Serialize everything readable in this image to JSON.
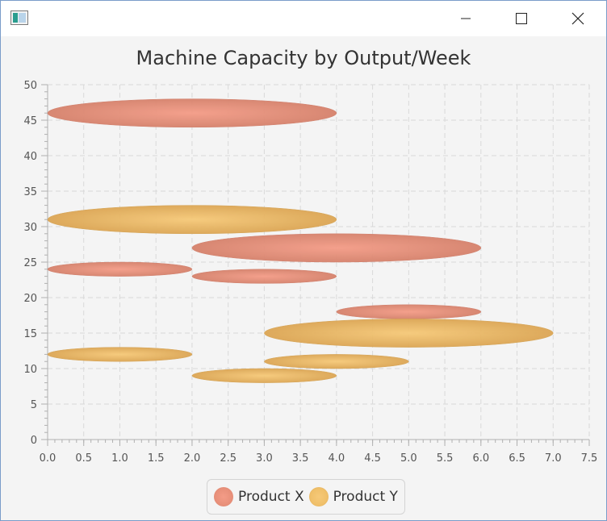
{
  "window": {
    "title": ""
  },
  "colors": {
    "product_x": "#e8907a",
    "product_y": "#f0c06a"
  },
  "chart_data": {
    "type": "bubble",
    "title": "Machine Capacity by Output/Week",
    "xlabel": "",
    "ylabel": "",
    "xlim": [
      0,
      7.5
    ],
    "ylim": [
      0,
      50
    ],
    "x_ticks": [
      "0.0",
      "0.5",
      "1.0",
      "1.5",
      "2.0",
      "2.5",
      "3.0",
      "3.5",
      "4.0",
      "4.5",
      "5.0",
      "5.5",
      "6.0",
      "6.5",
      "7.0",
      "7.5"
    ],
    "y_ticks": [
      "0",
      "5",
      "10",
      "15",
      "20",
      "25",
      "30",
      "35",
      "40",
      "45",
      "50"
    ],
    "grid": true,
    "legend_position": "bottom",
    "series": [
      {
        "name": "Product X",
        "points": [
          {
            "x": 2,
            "y": 46,
            "radius": 2
          },
          {
            "x": 1,
            "y": 24,
            "radius": 1
          },
          {
            "x": 4,
            "y": 27,
            "radius": 2
          },
          {
            "x": 3,
            "y": 23,
            "radius": 1
          },
          {
            "x": 5,
            "y": 18,
            "radius": 1
          }
        ]
      },
      {
        "name": "Product Y",
        "points": [
          {
            "x": 2,
            "y": 31,
            "radius": 2
          },
          {
            "x": 1,
            "y": 12,
            "radius": 1
          },
          {
            "x": 3,
            "y": 9,
            "radius": 1
          },
          {
            "x": 4,
            "y": 11,
            "radius": 1
          },
          {
            "x": 5,
            "y": 15,
            "radius": 2
          }
        ]
      }
    ]
  }
}
